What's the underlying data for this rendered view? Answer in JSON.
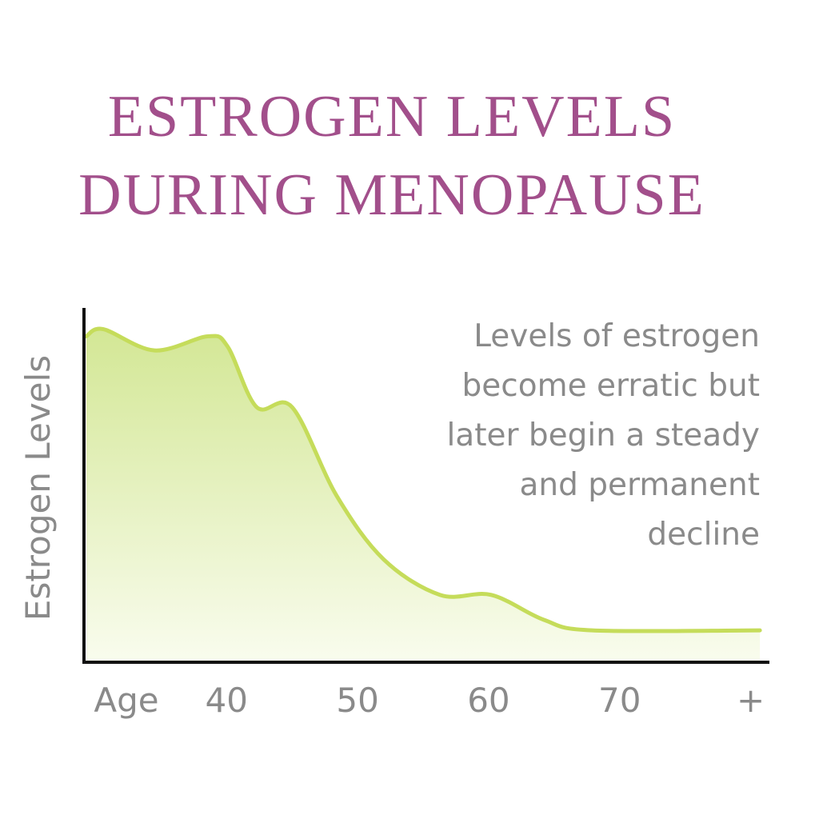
{
  "chart_data": {
    "type": "area",
    "title": [
      "ESTROGEN LEVELS",
      "DURING MENOPAUSE"
    ],
    "ylabel": "Estrogen Levels",
    "xlabel": "Age",
    "annotation": [
      "Levels of estrogen",
      "become erratic but",
      "later begin a steady",
      "and permanent",
      "decline"
    ],
    "x": [
      29.3,
      30.6,
      34.5,
      38.6,
      40.1,
      42.3,
      45,
      48.4,
      52,
      56.3,
      60.2,
      64.2,
      67.9,
      80.7
    ],
    "values": [
      92,
      94,
      88,
      92,
      89,
      72,
      72,
      47,
      29,
      19,
      19,
      12,
      9,
      9
    ],
    "xlim": [
      29,
      81
    ],
    "ylim": [
      0,
      100
    ],
    "xticks": [
      40,
      50,
      60,
      70,
      {
        "value": 80,
        "label": "+"
      }
    ],
    "color": "#c5dc5a"
  }
}
